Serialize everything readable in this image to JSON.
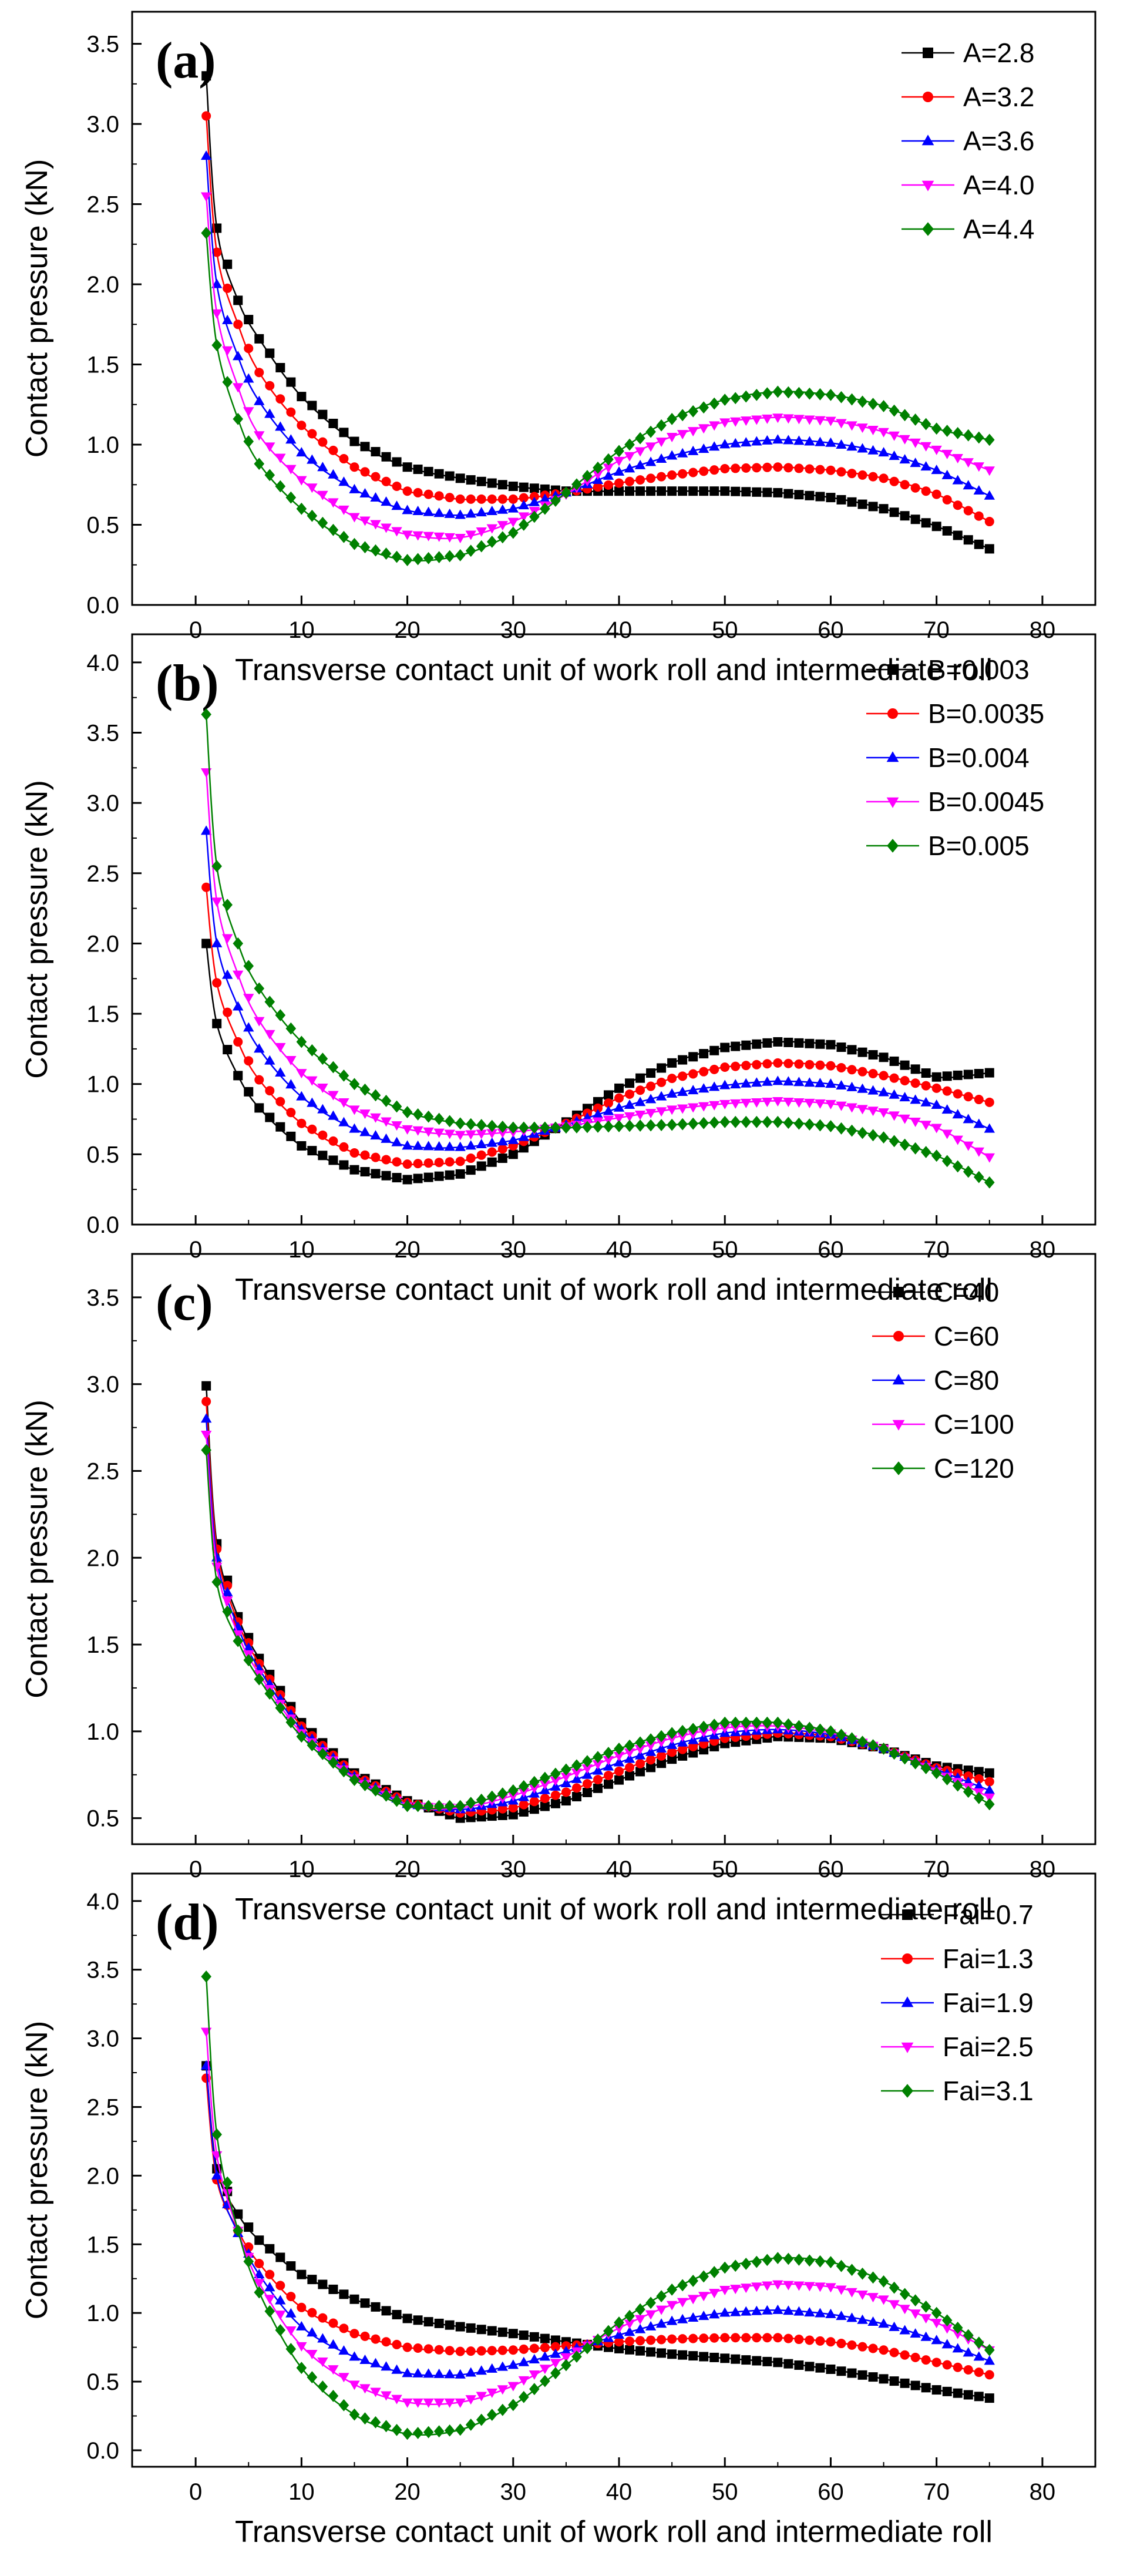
{
  "figure": {
    "x_axis_title": "Transverse contact unit of work roll and intermediate roll",
    "y_axis_title": "Contact pressure (kN)"
  },
  "colors": {
    "black": "#000000",
    "red": "#ff0000",
    "blue": "#0000ff",
    "magenta": "#ff00ff",
    "green": "#008000"
  },
  "chart_data": [
    {
      "type": "line",
      "panel_label": "(a)",
      "title": "",
      "xlabel": "Transverse contact unit of work roll and intermediate roll",
      "ylabel": "Contact pressure (kN)",
      "xlim": [
        -6,
        85
      ],
      "ylim": [
        0,
        3.7
      ],
      "xticks": [
        0,
        10,
        20,
        30,
        40,
        50,
        60,
        70,
        80
      ],
      "yticks": [
        0.0,
        0.5,
        1.0,
        1.5,
        2.0,
        2.5,
        3.0,
        3.5
      ],
      "ytick_labels": [
        "0.0",
        "0.5",
        "1.0",
        "1.5",
        "2.0",
        "2.5",
        "3.0",
        "3.5"
      ],
      "legend_position": "top-right",
      "series": [
        {
          "name": "A=2.8",
          "color": "#000000",
          "marker": "square",
          "x": [
            1,
            2,
            4,
            6,
            10,
            15,
            20,
            25,
            30,
            35,
            40,
            45,
            50,
            55,
            60,
            65,
            70,
            75
          ],
          "values": [
            3.3,
            2.35,
            1.9,
            1.66,
            1.3,
            1.02,
            0.86,
            0.79,
            0.74,
            0.71,
            0.71,
            0.71,
            0.71,
            0.7,
            0.67,
            0.6,
            0.49,
            0.35
          ]
        },
        {
          "name": "A=3.2",
          "color": "#ff0000",
          "marker": "circle",
          "x": [
            1,
            2,
            4,
            6,
            10,
            15,
            20,
            25,
            30,
            35,
            40,
            45,
            50,
            55,
            60,
            65,
            70,
            75
          ],
          "values": [
            3.05,
            2.2,
            1.75,
            1.45,
            1.12,
            0.86,
            0.71,
            0.66,
            0.66,
            0.7,
            0.76,
            0.81,
            0.85,
            0.86,
            0.84,
            0.79,
            0.69,
            0.52
          ]
        },
        {
          "name": "A=3.6",
          "color": "#0000ff",
          "marker": "triangle-up",
          "x": [
            1,
            2,
            4,
            6,
            10,
            15,
            20,
            25,
            30,
            35,
            40,
            45,
            50,
            55,
            60,
            65,
            70,
            75
          ],
          "values": [
            2.8,
            2.0,
            1.55,
            1.27,
            0.95,
            0.72,
            0.59,
            0.56,
            0.6,
            0.7,
            0.83,
            0.93,
            1.0,
            1.03,
            1.01,
            0.95,
            0.84,
            0.68
          ]
        },
        {
          "name": "A=4.0",
          "color": "#ff00ff",
          "marker": "triangle-down",
          "x": [
            1,
            2,
            4,
            6,
            10,
            15,
            20,
            25,
            30,
            35,
            40,
            45,
            50,
            55,
            60,
            65,
            70,
            75
          ],
          "values": [
            2.55,
            1.82,
            1.36,
            1.06,
            0.78,
            0.55,
            0.44,
            0.42,
            0.52,
            0.69,
            0.9,
            1.05,
            1.14,
            1.17,
            1.15,
            1.08,
            0.97,
            0.84
          ]
        },
        {
          "name": "A=4.4",
          "color": "#008000",
          "marker": "diamond",
          "x": [
            1,
            2,
            4,
            6,
            10,
            15,
            20,
            25,
            30,
            35,
            40,
            45,
            50,
            55,
            60,
            65,
            70,
            75
          ],
          "values": [
            2.32,
            1.62,
            1.16,
            0.88,
            0.6,
            0.38,
            0.28,
            0.31,
            0.45,
            0.7,
            0.96,
            1.16,
            1.28,
            1.33,
            1.31,
            1.24,
            1.1,
            1.03
          ]
        }
      ]
    },
    {
      "type": "line",
      "panel_label": "(b)",
      "title": "",
      "xlabel": "Transverse contact unit of work roll and intermediate roll",
      "ylabel": "Contact pressure (kN)",
      "xlim": [
        -6,
        85
      ],
      "ylim": [
        0,
        4.2
      ],
      "xticks": [
        0,
        10,
        20,
        30,
        40,
        50,
        60,
        70,
        80
      ],
      "yticks": [
        0.0,
        0.5,
        1.0,
        1.5,
        2.0,
        2.5,
        3.0,
        3.5,
        4.0
      ],
      "ytick_labels": [
        "0.0",
        "0.5",
        "1.0",
        "1.5",
        "2.0",
        "2.5",
        "3.0",
        "3.5",
        "4.0"
      ],
      "legend_position": "top-right",
      "series": [
        {
          "name": "B=0.003",
          "color": "#000000",
          "marker": "square",
          "x": [
            1,
            2,
            4,
            6,
            10,
            15,
            20,
            25,
            30,
            35,
            40,
            45,
            50,
            55,
            60,
            65,
            70,
            75
          ],
          "values": [
            2.0,
            1.43,
            1.06,
            0.83,
            0.56,
            0.39,
            0.32,
            0.36,
            0.5,
            0.73,
            0.97,
            1.15,
            1.26,
            1.3,
            1.28,
            1.19,
            1.05,
            1.08
          ]
        },
        {
          "name": "B=0.0035",
          "color": "#ff0000",
          "marker": "circle",
          "x": [
            1,
            2,
            4,
            6,
            10,
            15,
            20,
            25,
            30,
            35,
            40,
            45,
            50,
            55,
            60,
            65,
            70,
            75
          ],
          "values": [
            2.4,
            1.72,
            1.3,
            1.03,
            0.72,
            0.51,
            0.43,
            0.45,
            0.56,
            0.72,
            0.9,
            1.04,
            1.12,
            1.15,
            1.13,
            1.06,
            0.97,
            0.87
          ]
        },
        {
          "name": "B=0.004",
          "color": "#0000ff",
          "marker": "triangle-up",
          "x": [
            1,
            2,
            4,
            6,
            10,
            15,
            20,
            25,
            30,
            35,
            40,
            45,
            50,
            55,
            60,
            65,
            70,
            75
          ],
          "values": [
            2.8,
            2.0,
            1.55,
            1.25,
            0.91,
            0.68,
            0.56,
            0.55,
            0.6,
            0.71,
            0.83,
            0.93,
            0.99,
            1.02,
            1.0,
            0.94,
            0.85,
            0.68
          ]
        },
        {
          "name": "B=0.0045",
          "color": "#ff00ff",
          "marker": "triangle-down",
          "x": [
            1,
            2,
            4,
            6,
            10,
            15,
            20,
            25,
            30,
            35,
            40,
            45,
            50,
            55,
            60,
            65,
            70,
            75
          ],
          "values": [
            3.22,
            2.3,
            1.78,
            1.45,
            1.08,
            0.82,
            0.68,
            0.64,
            0.66,
            0.7,
            0.76,
            0.82,
            0.86,
            0.88,
            0.86,
            0.8,
            0.69,
            0.48
          ]
        },
        {
          "name": "B=0.005",
          "color": "#008000",
          "marker": "diamond",
          "x": [
            1,
            2,
            4,
            6,
            10,
            15,
            20,
            25,
            30,
            35,
            40,
            45,
            50,
            55,
            60,
            65,
            70,
            75
          ],
          "values": [
            3.63,
            2.55,
            2.0,
            1.68,
            1.3,
            1.0,
            0.8,
            0.72,
            0.69,
            0.69,
            0.7,
            0.71,
            0.73,
            0.73,
            0.7,
            0.62,
            0.49,
            0.3
          ]
        }
      ]
    },
    {
      "type": "line",
      "panel_label": "(c)",
      "title": "",
      "xlabel": "Transverse contact unit of work roll and intermediate roll",
      "ylabel": "Contact pressure (kN)",
      "xlim": [
        -6,
        85
      ],
      "ylim": [
        0.35,
        3.75
      ],
      "xticks": [
        0,
        10,
        20,
        30,
        40,
        50,
        60,
        70,
        80
      ],
      "yticks": [
        0.5,
        1.0,
        1.5,
        2.0,
        2.5,
        3.0,
        3.5
      ],
      "ytick_labels": [
        "0.5",
        "1.0",
        "1.5",
        "2.0",
        "2.5",
        "3.0",
        "3.5"
      ],
      "legend_position": "top-right",
      "series": [
        {
          "name": "C=40",
          "color": "#000000",
          "marker": "square",
          "x": [
            1,
            2,
            4,
            6,
            10,
            15,
            20,
            25,
            30,
            35,
            40,
            45,
            50,
            55,
            60,
            65,
            70,
            75
          ],
          "values": [
            2.99,
            2.08,
            1.66,
            1.42,
            1.05,
            0.76,
            0.6,
            0.5,
            0.52,
            0.6,
            0.72,
            0.84,
            0.93,
            0.97,
            0.96,
            0.9,
            0.8,
            0.76
          ]
        },
        {
          "name": "C=60",
          "color": "#ff0000",
          "marker": "circle",
          "x": [
            1,
            2,
            4,
            6,
            10,
            15,
            20,
            25,
            30,
            35,
            40,
            45,
            50,
            55,
            60,
            65,
            70,
            75
          ],
          "values": [
            2.9,
            2.05,
            1.63,
            1.39,
            1.03,
            0.75,
            0.59,
            0.53,
            0.56,
            0.65,
            0.77,
            0.88,
            0.96,
            0.99,
            0.97,
            0.9,
            0.79,
            0.71
          ]
        },
        {
          "name": "C=80",
          "color": "#0000ff",
          "marker": "triangle-up",
          "x": [
            1,
            2,
            4,
            6,
            10,
            15,
            20,
            25,
            30,
            35,
            40,
            45,
            50,
            55,
            60,
            65,
            70,
            75
          ],
          "values": [
            2.8,
            2.0,
            1.6,
            1.36,
            1.01,
            0.74,
            0.58,
            0.55,
            0.6,
            0.7,
            0.82,
            0.92,
            0.99,
            1.01,
            0.98,
            0.9,
            0.78,
            0.66
          ]
        },
        {
          "name": "C=100",
          "color": "#ff00ff",
          "marker": "triangle-down",
          "x": [
            1,
            2,
            4,
            6,
            10,
            15,
            20,
            25,
            30,
            35,
            40,
            45,
            50,
            55,
            60,
            65,
            70,
            75
          ],
          "values": [
            2.71,
            1.95,
            1.56,
            1.33,
            0.99,
            0.73,
            0.57,
            0.56,
            0.63,
            0.74,
            0.86,
            0.96,
            1.02,
            1.03,
            0.99,
            0.9,
            0.77,
            0.62
          ]
        },
        {
          "name": "C=120",
          "color": "#008000",
          "marker": "diamond",
          "x": [
            1,
            2,
            4,
            6,
            10,
            15,
            20,
            25,
            30,
            35,
            40,
            45,
            50,
            55,
            60,
            65,
            70,
            75
          ],
          "values": [
            2.62,
            1.86,
            1.52,
            1.3,
            0.97,
            0.72,
            0.57,
            0.57,
            0.66,
            0.78,
            0.9,
            0.99,
            1.05,
            1.05,
            1.0,
            0.9,
            0.76,
            0.58
          ]
        }
      ]
    },
    {
      "type": "line",
      "panel_label": "(d)",
      "title": "",
      "xlabel": "Transverse contact unit of work roll and intermediate roll",
      "ylabel": "Contact pressure (kN)",
      "xlim": [
        -6,
        85
      ],
      "ylim": [
        -0.12,
        4.2
      ],
      "xticks": [
        0,
        10,
        20,
        30,
        40,
        50,
        60,
        70,
        80
      ],
      "yticks": [
        0.0,
        0.5,
        1.0,
        1.5,
        2.0,
        2.5,
        3.0,
        3.5,
        4.0
      ],
      "ytick_labels": [
        "0.0",
        "0.5",
        "1.0",
        "1.5",
        "2.0",
        "2.5",
        "3.0",
        "3.5",
        "4.0"
      ],
      "legend_position": "top-right",
      "series": [
        {
          "name": "Fai=0.7",
          "color": "#000000",
          "marker": "square",
          "x": [
            1,
            2,
            4,
            6,
            10,
            15,
            20,
            25,
            30,
            35,
            40,
            45,
            50,
            55,
            60,
            65,
            70,
            75
          ],
          "values": [
            2.8,
            2.05,
            1.72,
            1.53,
            1.28,
            1.1,
            0.96,
            0.9,
            0.85,
            0.79,
            0.74,
            0.7,
            0.67,
            0.64,
            0.59,
            0.52,
            0.44,
            0.38
          ]
        },
        {
          "name": "Fai=1.3",
          "color": "#ff0000",
          "marker": "circle",
          "x": [
            1,
            2,
            4,
            6,
            10,
            15,
            20,
            25,
            30,
            35,
            40,
            45,
            50,
            55,
            60,
            65,
            70,
            75
          ],
          "values": [
            2.71,
            1.97,
            1.6,
            1.36,
            1.04,
            0.85,
            0.75,
            0.72,
            0.73,
            0.76,
            0.79,
            0.81,
            0.82,
            0.82,
            0.79,
            0.73,
            0.64,
            0.55
          ]
        },
        {
          "name": "Fai=1.9",
          "color": "#0000ff",
          "marker": "triangle-up",
          "x": [
            1,
            2,
            4,
            6,
            10,
            15,
            20,
            25,
            30,
            35,
            40,
            45,
            50,
            55,
            60,
            65,
            70,
            75
          ],
          "values": [
            2.8,
            2.0,
            1.58,
            1.28,
            0.9,
            0.68,
            0.56,
            0.55,
            0.62,
            0.72,
            0.84,
            0.94,
            1.0,
            1.02,
            0.99,
            0.92,
            0.8,
            0.65
          ]
        },
        {
          "name": "Fai=2.5",
          "color": "#ff00ff",
          "marker": "triangle-down",
          "x": [
            1,
            2,
            4,
            6,
            10,
            15,
            20,
            25,
            30,
            35,
            40,
            45,
            50,
            55,
            60,
            65,
            70,
            75
          ],
          "values": [
            3.05,
            2.15,
            1.6,
            1.22,
            0.76,
            0.48,
            0.35,
            0.35,
            0.47,
            0.68,
            0.89,
            1.06,
            1.17,
            1.21,
            1.19,
            1.1,
            0.93,
            0.73
          ]
        },
        {
          "name": "Fai=3.1",
          "color": "#008000",
          "marker": "diamond",
          "x": [
            1,
            2,
            4,
            6,
            10,
            15,
            20,
            25,
            30,
            35,
            40,
            45,
            50,
            55,
            60,
            65,
            70,
            75
          ],
          "values": [
            3.45,
            2.3,
            1.6,
            1.15,
            0.6,
            0.26,
            0.12,
            0.15,
            0.33,
            0.62,
            0.93,
            1.17,
            1.33,
            1.4,
            1.37,
            1.23,
            1.0,
            0.73
          ]
        }
      ]
    }
  ]
}
